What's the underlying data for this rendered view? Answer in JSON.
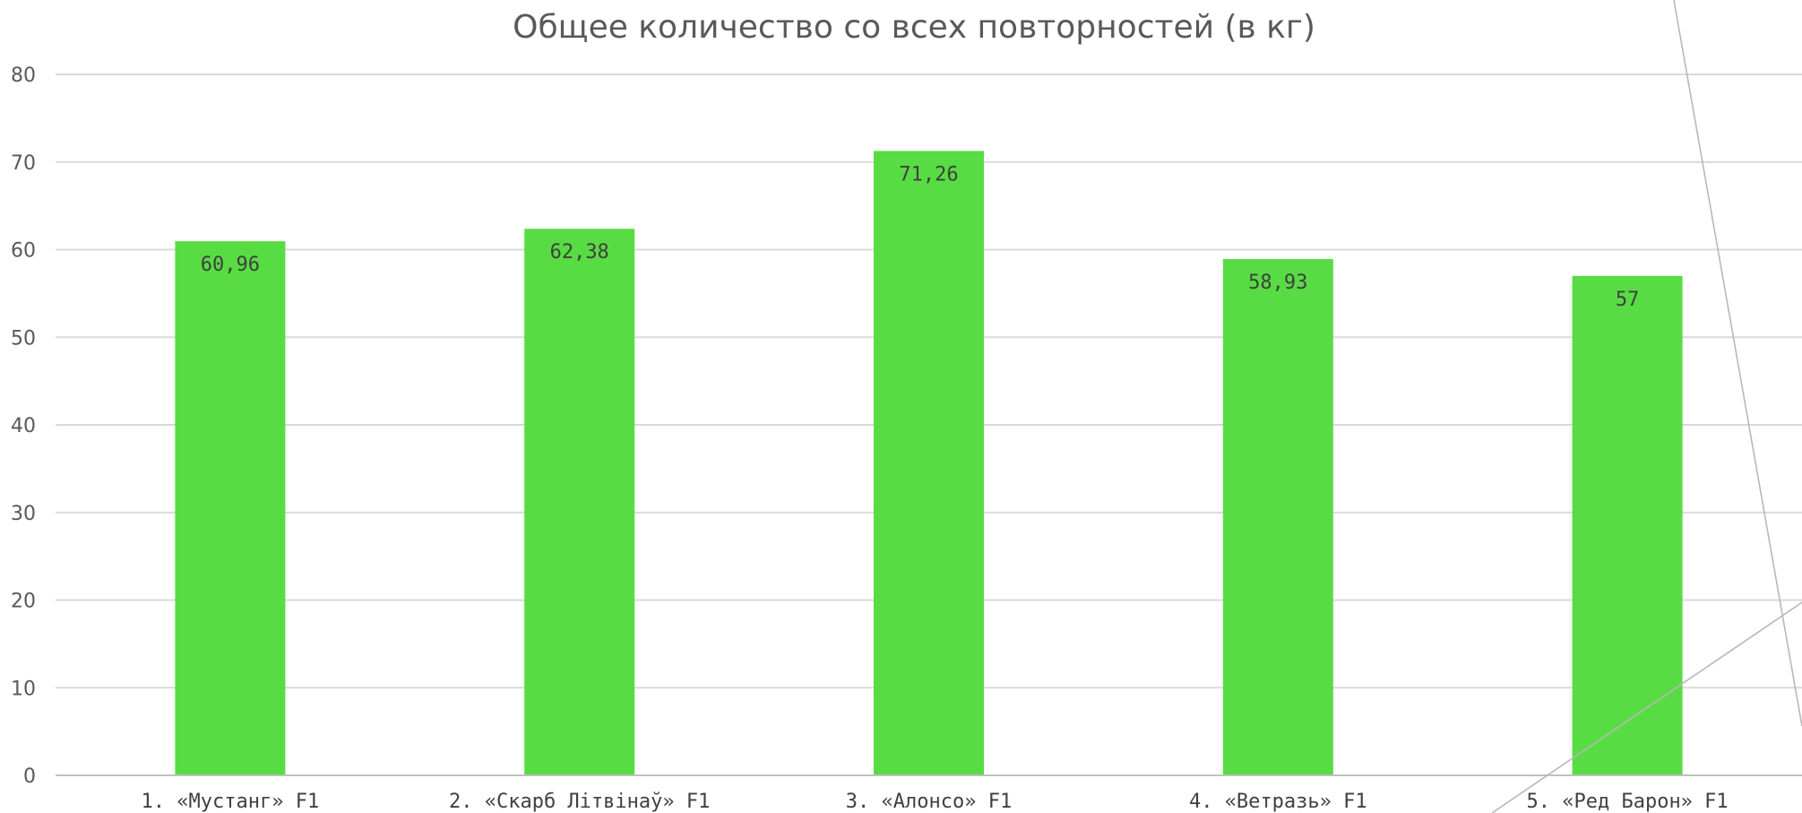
{
  "chart_data": {
    "type": "bar",
    "title": "Общее количество со всех повторностей (в кг)",
    "xlabel": "",
    "ylabel": "",
    "categories": [
      "1. «Мустанг» F1",
      "2. «Скарб Літвінаў» F1",
      "3. «Алонсо» F1",
      "4. «Ветразь» F1",
      "5. «Ред Барон» F1"
    ],
    "values": [
      60.96,
      62.38,
      71.26,
      58.93,
      57
    ],
    "data_labels": [
      "60,96",
      "62,38",
      "71,26",
      "58,93",
      "57"
    ],
    "ylim": [
      0,
      80
    ],
    "yticks": [
      0,
      10,
      20,
      30,
      40,
      50,
      60,
      70,
      80
    ],
    "grid": true,
    "legend": "none",
    "bar_color": "#58dc43"
  }
}
